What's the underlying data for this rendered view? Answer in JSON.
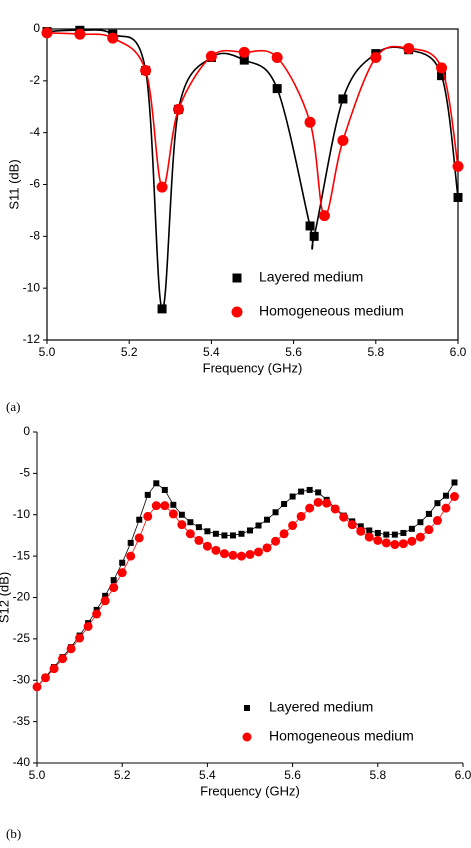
{
  "chart_data": [
    {
      "type": "line",
      "panel_label": "(a)",
      "x_label": "Frequency (GHz)",
      "y_label": "S11 (dB)",
      "smooth": true,
      "legend": "lower right",
      "xlim": [
        5.0,
        6.0
      ],
      "xticks": [
        {
          "value": 5,
          "label": "5.0"
        },
        5.2,
        5.4,
        5.6,
        5.8,
        {
          "value": 6,
          "label": "6.0"
        }
      ],
      "ylim": [
        -12,
        0
      ],
      "yticks": [
        -12,
        -10,
        -8,
        -6,
        -4,
        -2,
        0
      ],
      "series": [
        {
          "name": "Layered medium",
          "color": "#000000",
          "marker": "square",
          "x": [
            5.0,
            5.08,
            5.16,
            5.24,
            5.28,
            5.32,
            5.4,
            5.48,
            5.56,
            5.64,
            5.65,
            5.72,
            5.8,
            5.88,
            5.96,
            6.0
          ],
          "values": [
            -0.1,
            -0.05,
            -0.2,
            -1.6,
            -10.8,
            -3.1,
            -1.1,
            -1.2,
            -2.3,
            -7.6,
            -8.0,
            -2.7,
            -0.95,
            -0.8,
            -1.8,
            -6.5
          ]
        },
        {
          "name": "Homogeneous medium",
          "color": "#ff0000",
          "marker": "circle",
          "x": [
            5.0,
            5.08,
            5.16,
            5.24,
            5.28,
            5.32,
            5.4,
            5.48,
            5.56,
            5.64,
            5.675,
            5.72,
            5.8,
            5.88,
            5.96,
            6.0
          ],
          "values": [
            -0.15,
            -0.2,
            -0.35,
            -1.6,
            -6.1,
            -3.1,
            -1.05,
            -0.9,
            -1.1,
            -3.6,
            -7.2,
            -4.3,
            -1.1,
            -0.75,
            -1.5,
            -5.3
          ]
        }
      ]
    },
    {
      "type": "line",
      "panel_label": "(b)",
      "x_label": "Frequency (GHz)",
      "y_label": "S12 (dB)",
      "smooth": false,
      "legend": "lower right",
      "xlim": [
        5.0,
        6.0
      ],
      "xticks": [
        {
          "value": 5,
          "label": "5.0"
        },
        5.2,
        5.4,
        5.6,
        5.8,
        {
          "value": 6,
          "label": "6.0"
        }
      ],
      "ylim": [
        -40,
        0
      ],
      "yticks": [
        -40,
        -35,
        -30,
        -25,
        -20,
        -15,
        -10,
        -5,
        0
      ],
      "x": [
        5.0,
        5.02,
        5.04,
        5.06,
        5.08,
        5.1,
        5.12,
        5.14,
        5.16,
        5.18,
        5.2,
        5.22,
        5.24,
        5.26,
        5.28,
        5.3,
        5.32,
        5.34,
        5.36,
        5.38,
        5.4,
        5.42,
        5.44,
        5.46,
        5.48,
        5.5,
        5.52,
        5.54,
        5.56,
        5.58,
        5.6,
        5.62,
        5.64,
        5.66,
        5.68,
        5.7,
        5.72,
        5.74,
        5.76,
        5.78,
        5.8,
        5.82,
        5.84,
        5.86,
        5.88,
        5.9,
        5.92,
        5.94,
        5.96,
        5.98
      ],
      "series": [
        {
          "name": "Layered medium",
          "color": "#000000",
          "marker": "square",
          "values": [
            -30.8,
            -29.6,
            -28.4,
            -27.2,
            -26.0,
            -24.6,
            -23.1,
            -21.5,
            -19.8,
            -17.9,
            -15.8,
            -13.4,
            -10.6,
            -7.6,
            -6.2,
            -7.0,
            -8.8,
            -10.0,
            -10.9,
            -11.5,
            -12.0,
            -12.3,
            -12.5,
            -12.5,
            -12.3,
            -11.9,
            -11.3,
            -10.6,
            -9.7,
            -8.7,
            -7.8,
            -7.2,
            -7.0,
            -7.3,
            -8.2,
            -9.2,
            -10.1,
            -10.8,
            -11.4,
            -11.9,
            -12.2,
            -12.4,
            -12.4,
            -12.2,
            -11.7,
            -10.9,
            -9.9,
            -8.6,
            -7.7,
            -6.1
          ]
        },
        {
          "name": "Homogeneous medium",
          "color": "#ff0000",
          "marker": "circle",
          "values": [
            -30.8,
            -29.7,
            -28.6,
            -27.4,
            -26.2,
            -24.9,
            -23.5,
            -22.0,
            -20.4,
            -18.8,
            -17.0,
            -15.0,
            -12.8,
            -10.2,
            -8.9,
            -8.9,
            -9.9,
            -11.2,
            -12.3,
            -13.1,
            -13.8,
            -14.3,
            -14.7,
            -14.9,
            -15.0,
            -14.8,
            -14.5,
            -14.0,
            -13.2,
            -12.3,
            -11.3,
            -10.2,
            -9.2,
            -8.5,
            -8.6,
            -9.3,
            -10.3,
            -11.2,
            -12.0,
            -12.7,
            -13.1,
            -13.4,
            -13.6,
            -13.5,
            -13.2,
            -12.7,
            -11.8,
            -10.7,
            -9.2,
            -7.8
          ]
        }
      ]
    }
  ]
}
